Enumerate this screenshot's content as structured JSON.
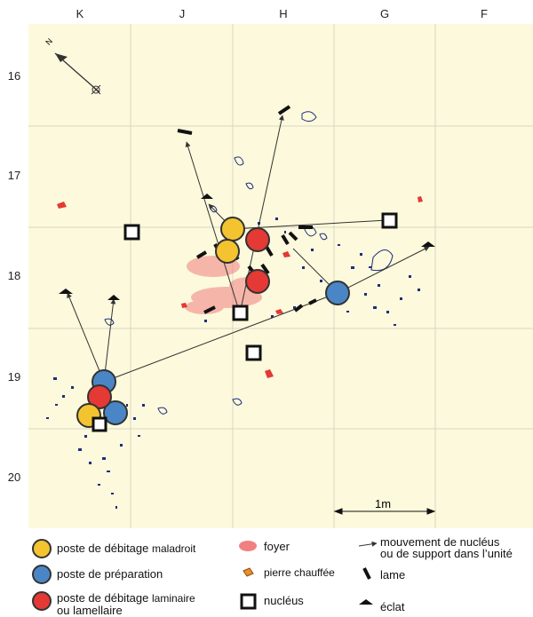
{
  "columns": [
    "K",
    "J",
    "H",
    "G",
    "F"
  ],
  "rows": [
    "16",
    "17",
    "18",
    "19",
    "20"
  ],
  "scale_bar": {
    "label": "1m"
  },
  "north_arrow": {
    "label": "N",
    "icon": "north-arrow-icon"
  },
  "colors": {
    "background": "#fdf9dc",
    "grid": "#d8d6c2",
    "maladroit": "#f4c430",
    "preparation": "#4a86c6",
    "laminaire": "#e53935",
    "foyer": "#f08080",
    "scatter": "#1f2e7a",
    "chauffee": "#e8902a"
  },
  "legend": {
    "maladroit": {
      "main": "poste de débitage",
      "qual": "maladroit"
    },
    "preparation": {
      "main": "poste de préparation"
    },
    "laminaire": {
      "main": "poste de débitage",
      "qual": "laminaire",
      "line2": "ou lamellaire"
    },
    "foyer": "foyer",
    "chauffee": "pierre chauffée",
    "nucleus": "nucléus",
    "mouvement": {
      "line1": "mouvement de nucléus",
      "line2": "ou de support dans l’unité"
    },
    "lame": "lame",
    "eclat": "éclat"
  }
}
